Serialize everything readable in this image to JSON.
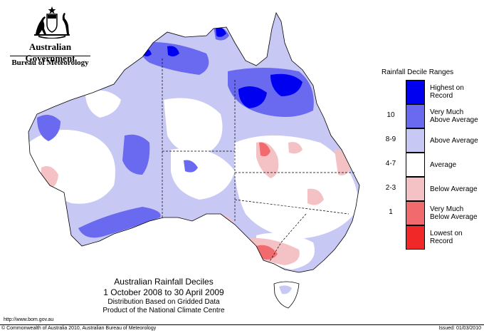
{
  "header": {
    "government": "Australian Government",
    "bureau": "Bureau of Meteorology"
  },
  "map": {
    "title": "Australian Rainfall Deciles",
    "period": "1 October 2008 to 30 April 2009",
    "note_line1": "Distribution Based on Gridded Data",
    "note_line2": "Product of the National Climate Centre"
  },
  "legend": {
    "title": "Rainfall Decile Ranges",
    "items": [
      {
        "code": "",
        "label_line1": "Highest on",
        "label_line2": "Record",
        "color": "#0000f0"
      },
      {
        "code": "10",
        "label_line1": "Very Much",
        "label_line2": "Above Average",
        "color": "#6a6af0"
      },
      {
        "code": "8-9",
        "label_line1": "Above Average",
        "label_line2": "",
        "color": "#c8c8f4"
      },
      {
        "code": "4-7",
        "label_line1": "Average",
        "label_line2": "",
        "color": "#ffffff"
      },
      {
        "code": "2-3",
        "label_line1": "Below Average",
        "label_line2": "",
        "color": "#f4c2c4"
      },
      {
        "code": "1",
        "label_line1": "Very Much",
        "label_line2": "Below Average",
        "color": "#f06a6e"
      },
      {
        "code": "",
        "label_line1": "Lowest on",
        "label_line2": "Record",
        "color": "#f02828"
      }
    ]
  },
  "footer": {
    "url": "http://www.bom.gov.au",
    "copyright": "© Commonwealth of Australia 2010, Australian Bureau of Meteorology",
    "issued": "Issued: 01/03/2010"
  }
}
